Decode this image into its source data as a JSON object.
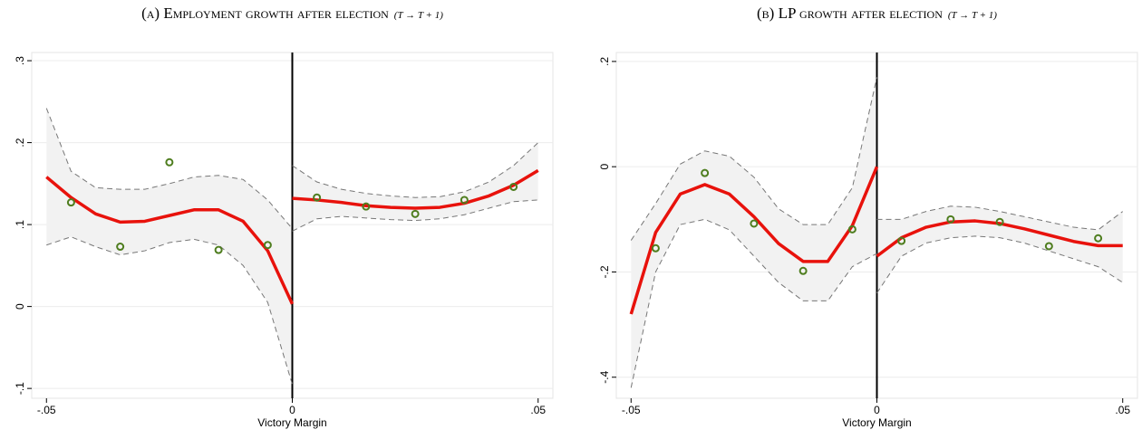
{
  "chart_data": [
    {
      "type": "scatter",
      "title": "(a) Employment growth after election",
      "title_note": "(T → T + 1)",
      "x_label": "Victory Margin",
      "xlim": [
        -0.053,
        0.053
      ],
      "xticks": [
        {
          "value": -0.05,
          "label": "-.05"
        },
        0,
        {
          "value": 0.05,
          "label": ".05"
        }
      ],
      "ylim": [
        -0.112,
        0.31
      ],
      "yticks": [
        {
          "value": -0.1,
          "label": "-.1"
        },
        0,
        {
          "value": 0.1,
          "label": ".1"
        },
        {
          "value": 0.2,
          "label": ".2"
        },
        {
          "value": 0.3,
          "label": ".3"
        }
      ],
      "grid": true,
      "cutoff": 0,
      "series": [
        {
          "kind": "scatter",
          "color": "#4e7d1e",
          "x": [
            -0.045,
            -0.035,
            -0.025,
            -0.015,
            -0.005,
            0.005,
            0.015,
            0.025,
            0.035,
            0.045
          ],
          "values": [
            0.127,
            0.073,
            0.176,
            0.069,
            0.075,
            0.133,
            0.122,
            0.113,
            0.13,
            0.146
          ]
        },
        {
          "kind": "fit",
          "color": "#e8120c",
          "x": [
            -0.05,
            -0.045,
            -0.04,
            -0.035,
            -0.03,
            -0.025,
            -0.02,
            -0.015,
            -0.01,
            -0.005,
            0
          ],
          "values": [
            0.158,
            0.133,
            0.113,
            0.103,
            0.104,
            0.111,
            0.118,
            0.118,
            0.104,
            0.068,
            0.003
          ],
          "upper": [
            0.242,
            0.165,
            0.145,
            0.143,
            0.143,
            0.15,
            0.158,
            0.16,
            0.155,
            0.13,
            0.095
          ],
          "lower": [
            0.075,
            0.085,
            0.073,
            0.063,
            0.068,
            0.078,
            0.082,
            0.075,
            0.05,
            0.005,
            -0.095
          ]
        },
        {
          "kind": "fit",
          "color": "#e8120c",
          "x": [
            0,
            0.005,
            0.01,
            0.015,
            0.02,
            0.025,
            0.03,
            0.035,
            0.04,
            0.045,
            0.05
          ],
          "values": [
            0.132,
            0.13,
            0.127,
            0.123,
            0.121,
            0.12,
            0.121,
            0.126,
            0.135,
            0.148,
            0.166
          ],
          "upper": [
            0.172,
            0.152,
            0.143,
            0.138,
            0.135,
            0.133,
            0.134,
            0.14,
            0.152,
            0.172,
            0.2
          ],
          "lower": [
            0.092,
            0.107,
            0.11,
            0.108,
            0.106,
            0.105,
            0.107,
            0.112,
            0.12,
            0.128,
            0.13
          ]
        }
      ]
    },
    {
      "type": "scatter",
      "title": "(b) LP growth after election",
      "title_note": "(T → T + 1)",
      "x_label": "Victory Margin",
      "xlim": [
        -0.053,
        0.053
      ],
      "xticks": [
        {
          "value": -0.05,
          "label": "-.05"
        },
        0,
        {
          "value": 0.05,
          "label": ".05"
        }
      ],
      "ylim": [
        -0.44,
        0.217
      ],
      "yticks": [
        {
          "value": -0.4,
          "label": "-.4"
        },
        {
          "value": -0.2,
          "label": "-.2"
        },
        0,
        {
          "value": 0.2,
          "label": ".2"
        }
      ],
      "grid": true,
      "cutoff": 0,
      "series": [
        {
          "kind": "scatter",
          "color": "#4e7d1e",
          "x": [
            -0.045,
            -0.035,
            -0.025,
            -0.015,
            -0.005,
            0.005,
            0.015,
            0.025,
            0.035,
            0.045
          ],
          "values": [
            -0.155,
            -0.012,
            -0.108,
            -0.198,
            -0.119,
            -0.141,
            -0.1,
            -0.105,
            -0.151,
            -0.136
          ]
        },
        {
          "kind": "fit",
          "color": "#e8120c",
          "x": [
            -0.05,
            -0.045,
            -0.04,
            -0.035,
            -0.03,
            -0.025,
            -0.02,
            -0.015,
            -0.01,
            -0.005,
            0
          ],
          "values": [
            -0.28,
            -0.125,
            -0.052,
            -0.034,
            -0.052,
            -0.095,
            -0.146,
            -0.18,
            -0.18,
            -0.112,
            0
          ],
          "upper": [
            -0.14,
            -0.07,
            0.005,
            0.03,
            0.02,
            -0.02,
            -0.08,
            -0.11,
            -0.11,
            -0.04,
            0.17
          ],
          "lower": [
            -0.42,
            -0.2,
            -0.11,
            -0.1,
            -0.12,
            -0.17,
            -0.22,
            -0.255,
            -0.255,
            -0.19,
            -0.165
          ]
        },
        {
          "kind": "fit",
          "color": "#e8120c",
          "x": [
            0,
            0.005,
            0.01,
            0.015,
            0.02,
            0.025,
            0.03,
            0.035,
            0.04,
            0.045,
            0.05
          ],
          "values": [
            -0.17,
            -0.135,
            -0.115,
            -0.105,
            -0.103,
            -0.108,
            -0.118,
            -0.13,
            -0.142,
            -0.15,
            -0.15
          ],
          "upper": [
            -0.1,
            -0.1,
            -0.085,
            -0.075,
            -0.077,
            -0.085,
            -0.095,
            -0.105,
            -0.115,
            -0.12,
            -0.085
          ],
          "lower": [
            -0.24,
            -0.17,
            -0.145,
            -0.135,
            -0.132,
            -0.135,
            -0.145,
            -0.16,
            -0.175,
            -0.19,
            -0.22
          ]
        }
      ]
    }
  ]
}
